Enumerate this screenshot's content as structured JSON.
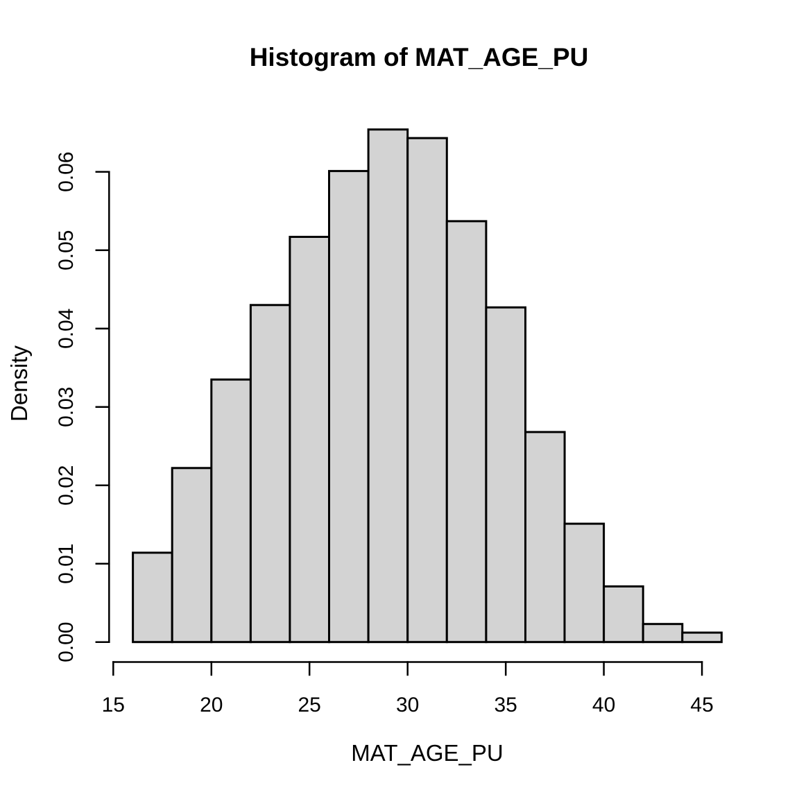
{
  "chart_data": {
    "type": "bar",
    "subtype": "histogram",
    "title": "Histogram of MAT_AGE_PU",
    "xlabel": "MAT_AGE_PU",
    "ylabel": "Density",
    "bin_edges": [
      16,
      18,
      20,
      22,
      24,
      26,
      28,
      30,
      32,
      34,
      36,
      38,
      40,
      42,
      44,
      46
    ],
    "values": [
      0.0114,
      0.0222,
      0.0335,
      0.043,
      0.0517,
      0.0601,
      0.0654,
      0.0643,
      0.0537,
      0.0427,
      0.0268,
      0.0151,
      0.0071,
      0.0023,
      0.0012
    ],
    "x_ticks": [
      15,
      20,
      25,
      30,
      35,
      40,
      45
    ],
    "y_tick_labels": [
      "0.00",
      "0.01",
      "0.02",
      "0.03",
      "0.04",
      "0.05",
      "0.06"
    ],
    "xlim": [
      14.8,
      47.2
    ],
    "ylim": [
      0,
      0.068
    ],
    "grid": false,
    "legend": "none",
    "bar_fill": "#d3d3d3",
    "bar_stroke": "#000000",
    "background": "#ffffff",
    "text_color": "#000000"
  }
}
